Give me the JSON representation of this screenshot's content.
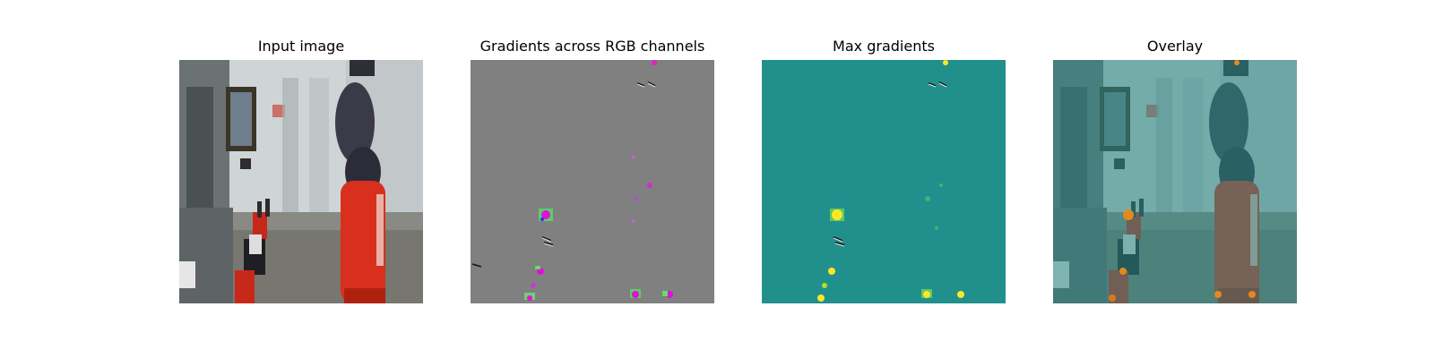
{
  "figure": {
    "panels": [
      {
        "title": "Input image"
      },
      {
        "title": "Gradients across RGB channels"
      },
      {
        "title": "Max gradients"
      },
      {
        "title": "Overlay"
      }
    ]
  },
  "colors": {
    "gradient_background": "#808080",
    "max_gradient_background": "#21908d",
    "max_gradient_high": "#fde725",
    "overlay_tint": "#2a8a86",
    "robot_red": "#d8301c",
    "robot_dark": "#3a3a48"
  }
}
